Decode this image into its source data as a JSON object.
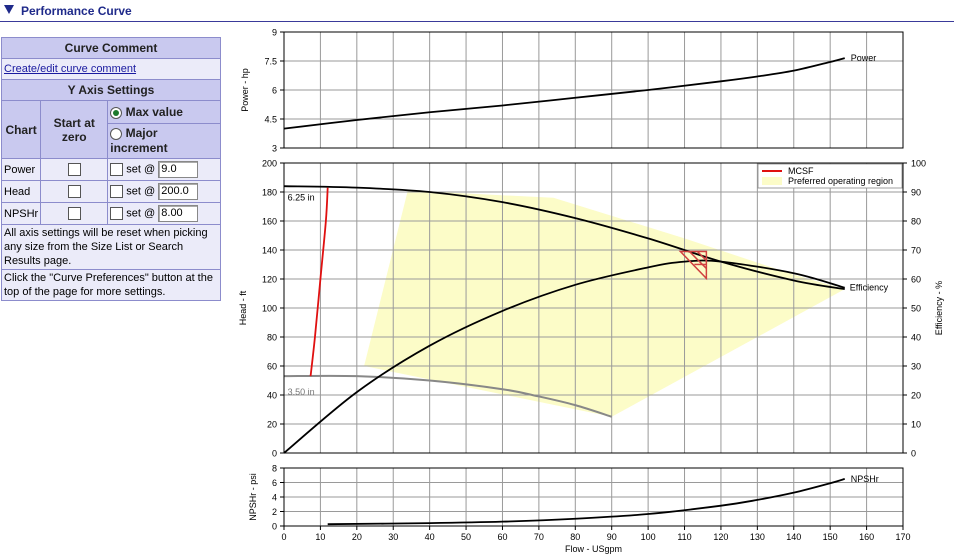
{
  "header": {
    "title": "Performance Curve"
  },
  "panel": {
    "comment_title": "Curve Comment",
    "comment_link": "Create/edit curve comment",
    "y_axis_title": "Y Axis Settings",
    "col_chart": "Chart",
    "col_start_zero": "Start at zero",
    "max_value_label": "Max value",
    "major_increment_label": "Major increment",
    "set_label": "set @",
    "rows": [
      {
        "label": "Power",
        "value": "9.0"
      },
      {
        "label": "Head",
        "value": "200.0"
      },
      {
        "label": "NPSHr",
        "value": "8.00"
      }
    ],
    "note1": "All axis settings will be reset when picking any size from the Size List or Search Results page.",
    "note2": "Click the \"Curve Preferences\" button at the top of the page for more settings."
  },
  "chart_data": [
    {
      "type": "line",
      "ylabel": "Power - hp",
      "xlim": [
        0,
        170
      ],
      "ylim": [
        3,
        9
      ],
      "yticks": [
        "9",
        "7.5",
        "6",
        "4.5",
        "3"
      ],
      "series": [
        {
          "name": "Power",
          "x": [
            0,
            20,
            40,
            60,
            80,
            100,
            120,
            130,
            140,
            150,
            154
          ],
          "y": [
            4.0,
            4.45,
            4.85,
            5.2,
            5.6,
            6.0,
            6.45,
            6.7,
            7.0,
            7.45,
            7.65
          ]
        }
      ]
    },
    {
      "type": "line",
      "ylabel": "Head - ft",
      "y2label": "Efficiency - %",
      "xlim": [
        0,
        170
      ],
      "ylim": [
        0,
        200
      ],
      "y2lim": [
        0,
        100
      ],
      "yticks": [
        "200",
        "180",
        "160",
        "140",
        "120",
        "100",
        "80",
        "60",
        "40",
        "20",
        "0"
      ],
      "y2ticks": [
        "100",
        "90",
        "80",
        "70",
        "60",
        "50",
        "40",
        "30",
        "20",
        "10",
        "0"
      ],
      "legend": [
        "MCSF",
        "Preferred operating region"
      ],
      "legend_position": "top-right",
      "colors": {
        "mcsf": "#e01010",
        "region": "#fcfcc8",
        "small_impeller": "#888888",
        "bep": "#d04040"
      },
      "annotations": [
        "6.25 in",
        "3.50 in",
        "Efficiency"
      ],
      "series": [
        {
          "name": "6.25 in",
          "x": [
            0,
            20,
            40,
            60,
            80,
            100,
            120,
            140,
            154
          ],
          "y": [
            184,
            183,
            180,
            173,
            162,
            148,
            132,
            119,
            113
          ]
        },
        {
          "name": "3.50 in",
          "x": [
            0,
            20,
            40,
            60,
            70,
            80,
            90
          ],
          "y": [
            53,
            53,
            50,
            44,
            39,
            33,
            25
          ]
        },
        {
          "name": "Efficiency",
          "axis": "y2",
          "x": [
            0,
            20,
            40,
            60,
            80,
            100,
            110,
            120,
            140,
            154
          ],
          "y": [
            0,
            21,
            37,
            49,
            58,
            64,
            66,
            66,
            62,
            57
          ]
        },
        {
          "name": "MCSF",
          "x": [
            7.3,
            8.5,
            10,
            11.5,
            12
          ],
          "y": [
            53,
            80,
            120,
            160,
            183
          ]
        }
      ],
      "region": {
        "x": [
          22,
          34,
          74,
          110,
          140,
          154,
          90
        ],
        "y": [
          60,
          181,
          176,
          148,
          123,
          113,
          25
        ]
      }
    },
    {
      "type": "line",
      "ylabel": "NPSHr - psi",
      "xlabel": "Flow - USgpm",
      "xlim": [
        0,
        170
      ],
      "ylim": [
        0,
        8
      ],
      "yticks": [
        "8",
        "6",
        "4",
        "2",
        "0"
      ],
      "xticks": [
        "0",
        "10",
        "20",
        "30",
        "40",
        "50",
        "60",
        "70",
        "80",
        "90",
        "100",
        "110",
        "120",
        "130",
        "140",
        "150",
        "160",
        "170"
      ],
      "series": [
        {
          "name": "NPSHr",
          "x": [
            12,
            40,
            60,
            80,
            100,
            120,
            130,
            140,
            150,
            154
          ],
          "y": [
            0.25,
            0.4,
            0.6,
            1.0,
            1.65,
            2.8,
            3.6,
            4.6,
            5.9,
            6.5
          ]
        }
      ]
    }
  ]
}
